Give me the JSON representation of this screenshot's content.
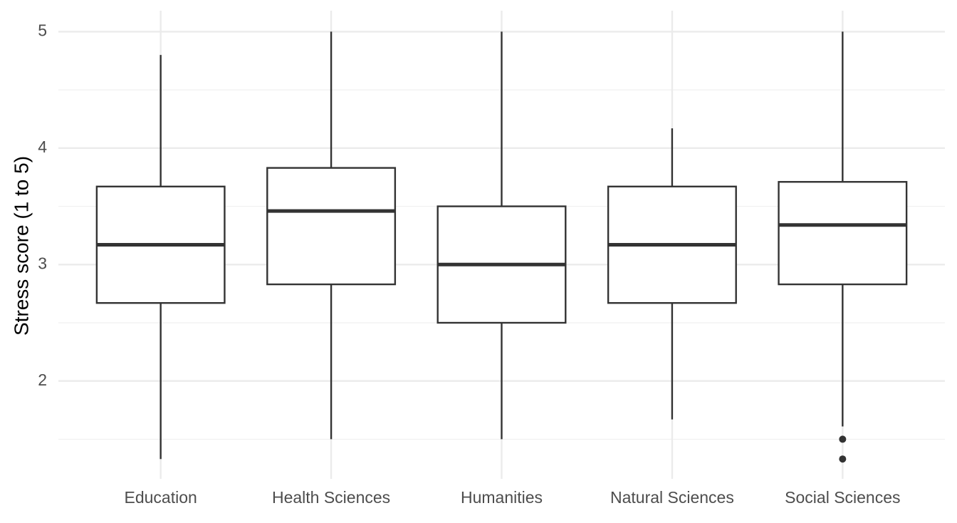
{
  "chart_data": {
    "type": "boxplot",
    "y_label": "Stress score (1 to 5)",
    "categories": [
      "Education",
      "Health Sciences",
      "Humanities",
      "Natural Sciences",
      "Social Sciences"
    ],
    "boxes": [
      {
        "low": 1.33,
        "q1": 2.67,
        "median": 3.17,
        "q3": 3.67,
        "high": 4.8,
        "outliers": []
      },
      {
        "low": 1.5,
        "q1": 2.83,
        "median": 3.46,
        "q3": 3.83,
        "high": 5,
        "outliers": []
      },
      {
        "low": 1.5,
        "q1": 2.5,
        "median": 3.0,
        "q3": 3.5,
        "high": 5,
        "outliers": []
      },
      {
        "low": 1.67,
        "q1": 2.67,
        "median": 3.17,
        "q3": 3.67,
        "high": 4.17,
        "outliers": []
      },
      {
        "low": 1.61,
        "q1": 2.83,
        "median": 3.34,
        "q3": 3.71,
        "high": 5,
        "outliers": [
          1.5,
          1.33
        ]
      }
    ],
    "color": "#333333",
    "fill": "#ffffff",
    "ylim": [
      1.16,
      5.18
    ],
    "yticks": [
      2,
      3,
      4,
      5
    ],
    "minor_yticks": [
      1.5,
      2.5,
      3.5,
      4.5
    ],
    "grid": true
  }
}
